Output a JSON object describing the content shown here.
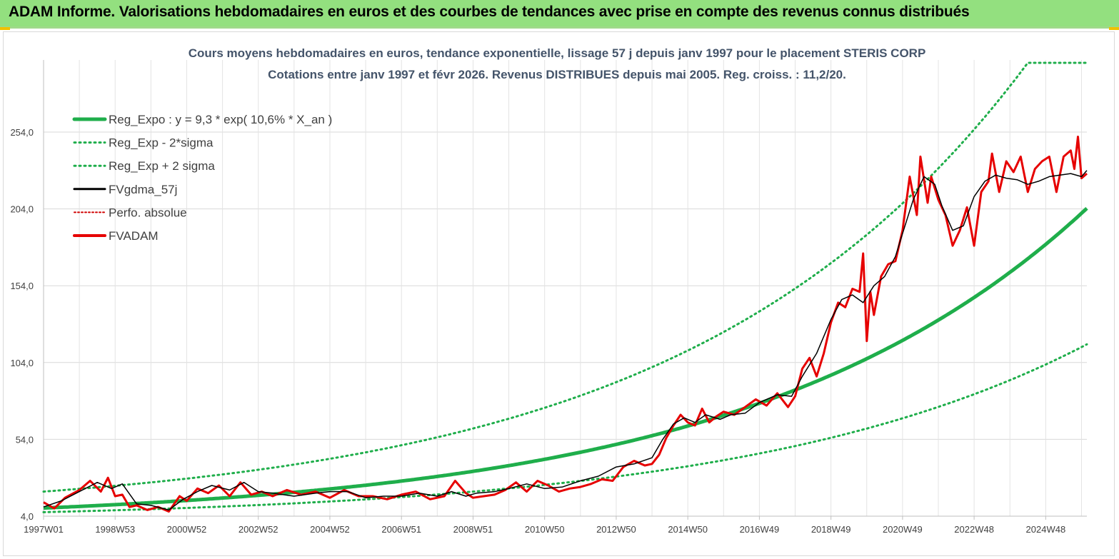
{
  "page": {
    "header_title": "ADAM Informe. Valorisations hebdomadaires en euros et des courbes de tendances avec prise en compte des revenus connus distribués"
  },
  "chart_data": {
    "type": "line",
    "title": "Cours moyens hebdomadaires en euros, tendance exponentielle, lissage 57 j depuis janv 1997 pour le placement STERIS CORP",
    "subtitle": "Cotations entre janv 1997 et févr 2026. Revenus DISTRIBUES depuis mai 2005. Reg. croiss. : 11,2/20.",
    "xlabel": "",
    "ylabel": "",
    "ylim": [
      4,
      304
    ],
    "xlim": [
      1997.0,
      2026.15
    ],
    "y_ticks": [
      "4,0",
      "54,0",
      "104,0",
      "154,0",
      "204,0",
      "254,0"
    ],
    "y_tick_values": [
      4,
      54,
      104,
      154,
      204,
      254
    ],
    "x_tick_labels": [
      "1997W01",
      "1998W53",
      "2000W52",
      "2002W52",
      "2004W52",
      "2006W51",
      "2008W51",
      "2010W50",
      "2012W50",
      "2014W50",
      "2016W49",
      "2018W49",
      "2020W49",
      "2022W48",
      "2024W48"
    ],
    "x_tick_positions": [
      1997.0,
      1999.0,
      2001.0,
      2003.0,
      2005.0,
      2007.0,
      2009.0,
      2011.0,
      2013.0,
      2015.0,
      2017.0,
      2019.0,
      2021.0,
      2023.0,
      2025.0
    ],
    "regression": {
      "a": 9.3,
      "k": 0.106,
      "x0": 1997.0,
      "sigma_low_factor": 0.56,
      "sigma_high_factor": 1.72
    },
    "series": [
      {
        "name": "Reg_Expo : y = 9,3 * exp( 10,6% *  X_an )",
        "color": "#1fae4b",
        "style": "solid-thick"
      },
      {
        "name": "Reg_Exp - 2*sigma",
        "color": "#1fae4b",
        "style": "dotted"
      },
      {
        "name": "Reg_Exp + 2 sigma",
        "color": "#1fae4b",
        "style": "dotted"
      },
      {
        "name": "FVgdma_57j",
        "color": "#000000",
        "style": "solid",
        "x": [
          1997.0,
          1997.5,
          1998.0,
          1998.5,
          1998.9,
          1999.2,
          1999.6,
          2000.0,
          2000.5,
          2000.9,
          2001.3,
          2001.7,
          2002.2,
          2002.6,
          2003.0,
          2003.4,
          2004.0,
          2004.6,
          2005.0,
          2005.5,
          2006.0,
          2006.5,
          2007.0,
          2007.5,
          2008.0,
          2008.4,
          2008.8,
          2009.1,
          2009.6,
          2010.0,
          2010.5,
          2011.0,
          2011.5,
          2012.0,
          2012.5,
          2013.0,
          2013.5,
          2014.0,
          2014.3,
          2014.6,
          2014.9,
          2015.2,
          2015.5,
          2015.9,
          2016.2,
          2016.6,
          2017.0,
          2017.5,
          2017.9,
          2018.2,
          2018.6,
          2019.0,
          2019.3,
          2019.6,
          2019.9,
          2020.2,
          2020.5,
          2020.8,
          2021.0,
          2021.3,
          2021.6,
          2021.9,
          2022.1,
          2022.4,
          2022.7,
          2023.0,
          2023.3,
          2023.6,
          2023.9,
          2024.2,
          2024.5,
          2024.8,
          2025.1,
          2025.4,
          2025.7,
          2026.0,
          2026.15
        ],
        "values": [
          10,
          14,
          20,
          26,
          22,
          25,
          12,
          11,
          8,
          15,
          20,
          24,
          21,
          26,
          20,
          19,
          17,
          19,
          20,
          20,
          16,
          17,
          17,
          19,
          17,
          20,
          17,
          19,
          20,
          22,
          25,
          22,
          23,
          27,
          30,
          36,
          38,
          42,
          54,
          64,
          68,
          65,
          70,
          67,
          70,
          71,
          78,
          83,
          82,
          95,
          110,
          132,
          145,
          148,
          143,
          154,
          160,
          173,
          188,
          210,
          225,
          220,
          206,
          190,
          193,
          212,
          222,
          226,
          224,
          223,
          220,
          222,
          225,
          226,
          227,
          225,
          229
        ]
      },
      {
        "name": "Perfo. absolue",
        "color": "#d00000",
        "style": "dotted"
      },
      {
        "name": "FVADAM",
        "color": "#e60000",
        "style": "solid-medium",
        "x": [
          1997.0,
          1997.3,
          1997.6,
          1998.0,
          1998.3,
          1998.6,
          1998.8,
          1999.0,
          1999.2,
          1999.4,
          1999.6,
          1999.9,
          2000.2,
          2000.5,
          2000.8,
          2001.0,
          2001.3,
          2001.6,
          2001.9,
          2002.2,
          2002.5,
          2002.8,
          2003.1,
          2003.4,
          2003.8,
          2004.2,
          2004.6,
          2005.0,
          2005.4,
          2005.8,
          2006.2,
          2006.6,
          2007.0,
          2007.4,
          2007.8,
          2008.2,
          2008.5,
          2008.8,
          2009.0,
          2009.3,
          2009.6,
          2009.9,
          2010.2,
          2010.5,
          2010.8,
          2011.1,
          2011.4,
          2011.7,
          2012.0,
          2012.3,
          2012.6,
          2012.9,
          2013.2,
          2013.5,
          2013.8,
          2014.0,
          2014.2,
          2014.4,
          2014.6,
          2014.8,
          2015.0,
          2015.2,
          2015.4,
          2015.6,
          2015.8,
          2016.0,
          2016.3,
          2016.6,
          2016.9,
          2017.2,
          2017.5,
          2017.8,
          2018.0,
          2018.2,
          2018.4,
          2018.6,
          2018.8,
          2019.0,
          2019.2,
          2019.4,
          2019.6,
          2019.8,
          2019.9,
          2020.0,
          2020.1,
          2020.2,
          2020.4,
          2020.6,
          2020.8,
          2021.0,
          2021.2,
          2021.4,
          2021.5,
          2021.7,
          2021.8,
          2022.0,
          2022.2,
          2022.4,
          2022.6,
          2022.8,
          2023.0,
          2023.2,
          2023.4,
          2023.5,
          2023.7,
          2023.9,
          2024.1,
          2024.3,
          2024.5,
          2024.7,
          2024.9,
          2025.1,
          2025.3,
          2025.5,
          2025.7,
          2025.8,
          2025.9,
          2026.0,
          2026.15
        ],
        "values": [
          13,
          9,
          16,
          21,
          27,
          20,
          29,
          17,
          18,
          10,
          11,
          8,
          10,
          7,
          17,
          14,
          22,
          19,
          24,
          17,
          26,
          18,
          20,
          17,
          21,
          18,
          20,
          16,
          21,
          17,
          17,
          15,
          18,
          20,
          15,
          17,
          27,
          19,
          16,
          17,
          18,
          21,
          26,
          20,
          27,
          24,
          20,
          22,
          23,
          25,
          28,
          27,
          36,
          40,
          37,
          38,
          44,
          55,
          63,
          70,
          65,
          63,
          74,
          65,
          69,
          72,
          70,
          75,
          80,
          76,
          84,
          75,
          82,
          100,
          107,
          95,
          110,
          130,
          143,
          140,
          152,
          150,
          175,
          118,
          150,
          135,
          160,
          168,
          170,
          190,
          225,
          200,
          238,
          208,
          225,
          210,
          200,
          180,
          190,
          205,
          180,
          215,
          222,
          240,
          215,
          235,
          228,
          238,
          215,
          230,
          235,
          238,
          215,
          238,
          242,
          230,
          251,
          224,
          227
        ]
      }
    ]
  }
}
